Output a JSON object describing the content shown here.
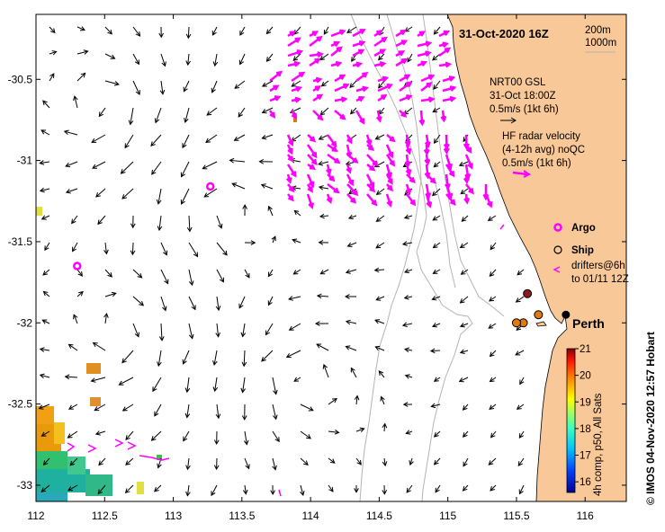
{
  "title": "31-Oct-2020 16Z",
  "contours": {
    "line1": "200m",
    "line2": "1000m"
  },
  "model": {
    "name": "NRT00 GSL",
    "time": "31-Oct 18:00Z",
    "scale": "0.5m/s (1kt 6h)"
  },
  "radar": {
    "line1": "HF radar velocity",
    "line2": "(4-12h avg) noQC",
    "scale": "0.5m/s (1kt 6h)"
  },
  "legend": {
    "argo": "Argo",
    "ship": "Ship",
    "drifters_line1": "drifters@6h",
    "drifters_line2": "to 01/11 12Z"
  },
  "city": "Perth",
  "x_axis": {
    "ticks": [
      "112",
      "112.5",
      "113",
      "113.5",
      "114",
      "114.5",
      "115",
      "115.5",
      "116"
    ],
    "values": [
      112,
      112.5,
      113,
      113.5,
      114,
      114.5,
      115,
      115.5,
      116
    ],
    "range": [
      112,
      116.3
    ]
  },
  "y_axis": {
    "ticks": [
      "-30.5",
      "-31",
      "-31.5",
      "-32",
      "-32.5",
      "-33"
    ],
    "values": [
      -30.5,
      -31,
      -31.5,
      -32,
      -32.5,
      -33
    ],
    "range": [
      -33.1,
      -30.1
    ]
  },
  "colorbar": {
    "label": "4h comp, p50, All Sats",
    "ticks": [
      "21",
      "20",
      "19",
      "18",
      "17",
      "16"
    ],
    "min": 15.6,
    "max": 21
  },
  "credit": "© IMOS 04-Nov-2020 12:57 Hobart",
  "colors": {
    "land": "#f8c898",
    "radar": "#ff00ff",
    "model": "#000000",
    "bathy": "#b4b4b4",
    "argo": "#ff00ff",
    "ship_brown": "#8b1a1a",
    "ship_orange": "#e07a10"
  },
  "argo_floats": [
    {
      "lon": 113.27,
      "lat": -31.16
    },
    {
      "lon": 112.3,
      "lat": -31.65
    }
  ],
  "ships": [
    {
      "lon": 115.58,
      "lat": -31.82,
      "color": "#8b1a1a"
    },
    {
      "lon": 115.66,
      "lat": -31.95,
      "color": "#e07a10"
    },
    {
      "lon": 115.55,
      "lat": -32.0,
      "color": "#e07a10"
    },
    {
      "lon": 115.5,
      "lat": -32.0,
      "color": "#e07a10"
    }
  ],
  "perth": {
    "lon": 115.86,
    "lat": -31.95
  }
}
